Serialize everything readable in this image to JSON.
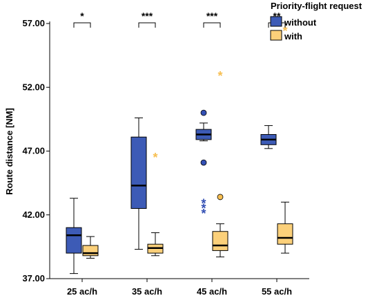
{
  "chart_data": {
    "type": "boxplot",
    "categories": [
      "25 ac/h",
      "35 ac/h",
      "45 ac/h",
      "55 ac/h"
    ],
    "ylabel": "Route distance [NM]",
    "ylim": [
      37.0,
      57.0
    ],
    "yticks": [
      "37.00",
      "42.00",
      "47.00",
      "52.00",
      "57.00"
    ],
    "ytick_values": [
      37.0,
      42.0,
      47.0,
      52.0,
      57.0
    ],
    "grid": false,
    "legend": {
      "title": "Priority-flight request",
      "placement": "top-right"
    },
    "series": [
      {
        "name": "without",
        "color": "#3d5bb6",
        "outlier_color": "#3350b4",
        "boxes": [
          {
            "whisker_low": 37.4,
            "q1": 39.0,
            "median": 40.4,
            "q3": 41.0,
            "whisker_high": 43.3,
            "outliers": [],
            "extremes": []
          },
          {
            "whisker_low": 39.3,
            "q1": 42.5,
            "median": 44.3,
            "q3": 48.1,
            "whisker_high": 49.6,
            "outliers": [],
            "extremes": []
          },
          {
            "whisker_low": 47.8,
            "q1": 47.9,
            "median": 48.3,
            "q3": 48.7,
            "whisker_high": 49.2,
            "outliers": [
              50.0,
              46.1
            ],
            "extremes": [
              43.0,
              42.6,
              42.2
            ]
          },
          {
            "whisker_low": 47.2,
            "q1": 47.5,
            "median": 47.9,
            "q3": 48.3,
            "whisker_high": 49.0,
            "outliers": [],
            "extremes": []
          }
        ]
      },
      {
        "name": "with",
        "color": "#fbd07a",
        "outlier_color": "#f7bf52",
        "boxes": [
          {
            "whisker_low": 38.6,
            "q1": 38.8,
            "median": 39.0,
            "q3": 39.6,
            "whisker_high": 40.3,
            "outliers": [],
            "extremes": []
          },
          {
            "whisker_low": 38.8,
            "q1": 39.0,
            "median": 39.4,
            "q3": 39.7,
            "whisker_high": 40.6,
            "outliers": [],
            "extremes": [
              46.6
            ]
          },
          {
            "whisker_low": 38.7,
            "q1": 39.2,
            "median": 39.6,
            "q3": 40.7,
            "whisker_high": 41.3,
            "outliers": [
              43.4
            ],
            "extremes": [
              53.0
            ]
          },
          {
            "whisker_low": 39.0,
            "q1": 39.7,
            "median": 40.2,
            "q3": 41.3,
            "whisker_high": 43.0,
            "outliers": [],
            "extremes": [
              56.5
            ]
          }
        ]
      }
    ],
    "significance": [
      "*",
      "***",
      "***",
      "**"
    ]
  }
}
